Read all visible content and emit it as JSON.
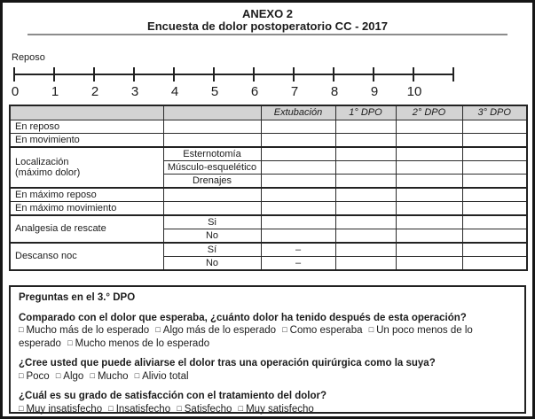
{
  "page": {
    "title": "ANEXO 2",
    "subtitle": "Encuesta de dolor postoperatorio CC - 2017"
  },
  "scale": {
    "label": "Reposo",
    "ticks": [
      "0",
      "1",
      "2",
      "3",
      "4",
      "5",
      "6",
      "7",
      "8",
      "9",
      "10",
      ""
    ]
  },
  "table": {
    "headers": [
      "",
      "",
      "Extubación",
      "1° DPO",
      "2° DPO",
      "3° DPO"
    ],
    "rows": [
      {
        "label": "En reposo"
      },
      {
        "label": "En movimiento"
      },
      {
        "label_line1": "Localización",
        "label_line2": "(máximo dolor)",
        "subrows": [
          "Esternotomía",
          "Músculo-esquelético",
          "Drenajes"
        ]
      },
      {
        "label": "En máximo reposo"
      },
      {
        "label": "En máximo movimiento"
      },
      {
        "label": "Analgesia de rescate",
        "subrows": [
          "Si",
          "No"
        ]
      },
      {
        "label": "Descanso noc",
        "subrows": [
          "Sí",
          "No"
        ],
        "extubacion": [
          "–",
          "–"
        ]
      }
    ]
  },
  "questions_box": {
    "title": "Preguntas en el 3.° DPO",
    "q1": {
      "text": "Comparado con el dolor que esperaba, ¿cuánto dolor ha tenido después de esta operación?",
      "options": [
        "Mucho más de lo esperado",
        "Algo más de lo esperado",
        "Como esperaba",
        "Un poco menos de lo esperado",
        "Mucho menos de lo esperado"
      ]
    },
    "q2": {
      "text": "¿Cree usted que puede aliviarse el dolor tras una operación quirúrgica como la suya?",
      "options": [
        "Poco",
        "Algo",
        "Mucho",
        "Alivio total"
      ]
    },
    "q3": {
      "text": "¿Cuál es su grado de satisfacción con el tratamiento del dolor?",
      "options": [
        "Muy insatisfecho",
        "Insatisfecho",
        "Satisfecho",
        "Muy satisfecho"
      ]
    }
  },
  "glyphs": {
    "checkbox": "□"
  },
  "colors": {
    "header_bg": "#d3d3d3",
    "border": "#222222",
    "divider": "#8c8c8c"
  }
}
